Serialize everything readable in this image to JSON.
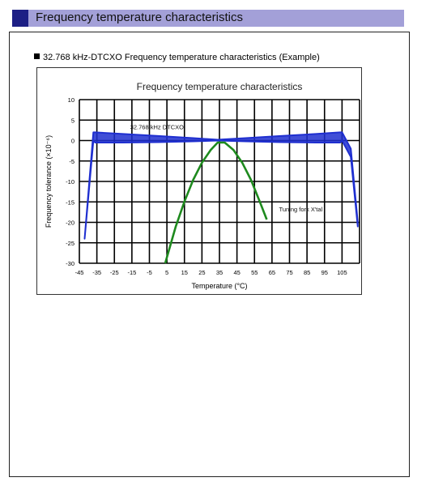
{
  "header": {
    "title": "Frequency temperature characteristics"
  },
  "caption": "32.768 kHz-DTCXO Frequency temperature characteristics (Example)",
  "colors": {
    "header_bg": "#a3a0d8",
    "header_square": "#1d1f85",
    "dtcxo": "#1f2fd0",
    "xtal": "#1e8a1e"
  },
  "chart_data": {
    "type": "line",
    "title": "Frequency temperature characteristics",
    "xlabel": "Temperature (°C)",
    "ylabel": "Frequency tolerance (×10⁻⁶)",
    "xlim": [
      -45,
      115
    ],
    "ylim": [
      -30,
      10
    ],
    "xticks": [
      "-45",
      "-35",
      "-25",
      "-15",
      "-5",
      "5",
      "15",
      "25",
      "35",
      "45",
      "55",
      "65",
      "75",
      "85",
      "95",
      "105"
    ],
    "yticks": [
      "10",
      "5",
      "0",
      "-5",
      "-10",
      "-15",
      "-20",
      "-25",
      "-30"
    ],
    "grid": true,
    "annotations": [
      "32.768 kHz DTCXO",
      "Tuning fork X'tal"
    ],
    "series": [
      {
        "label": "32.768 kHz DTCXO",
        "x": [
          -42,
          -37,
          -36,
          -20,
          0,
          20,
          34,
          50,
          70,
          90,
          104,
          105,
          110,
          114
        ],
        "y_upper": [
          -24,
          2,
          2,
          1.6,
          1.1,
          0.6,
          0.2,
          0.6,
          1.1,
          1.6,
          2,
          2,
          -2,
          -20
        ],
        "y_lower": [
          -24,
          0,
          -0.5,
          -0.5,
          -0.4,
          -0.2,
          0,
          -0.2,
          -0.4,
          -0.5,
          -0.5,
          0,
          -4,
          -21
        ]
      },
      {
        "label": "Tuning fork X'tal",
        "x": [
          4,
          10,
          15,
          20,
          25,
          30,
          34,
          38,
          43,
          48,
          53,
          58,
          62
        ],
        "y": [
          -30,
          -21.1,
          -14.9,
          -9.6,
          -5.4,
          -2.3,
          -0.5,
          -0.5,
          -2.3,
          -5.4,
          -9.6,
          -14.9,
          -19.3
        ]
      }
    ]
  }
}
